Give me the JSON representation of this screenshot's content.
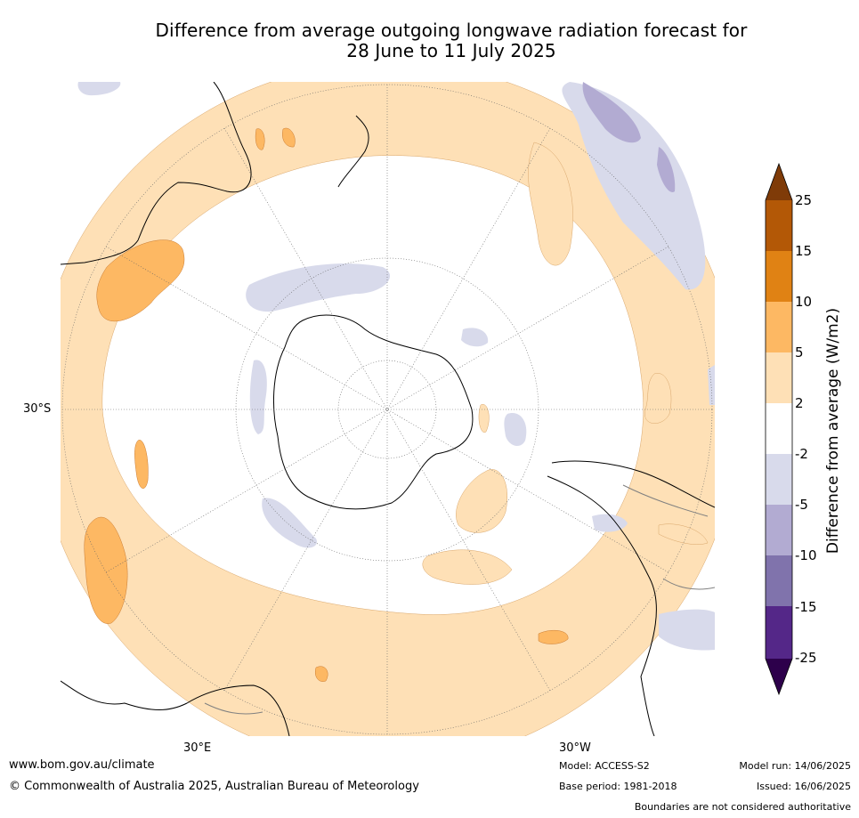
{
  "title_line1": "Difference from average outgoing longwave radiation forecast for",
  "title_line2": "28 June to 11 July 2025",
  "labels": {
    "lat_30s": "30°S",
    "lon_30e": "30°E",
    "lon_30w": "30°W"
  },
  "colorbar": {
    "title": "Difference from average (W/m2)",
    "tick_labels": [
      "25",
      "15",
      "10",
      "5",
      "2",
      "-2",
      "-5",
      "-10",
      "-15",
      "-25"
    ],
    "colors_top_to_bottom": [
      "#7f3b08",
      "#b35806",
      "#e08214",
      "#fdb863",
      "#fee0b6",
      "#ffffff",
      "#d8daeb",
      "#b2abd2",
      "#8073ac",
      "#542788",
      "#2d004b"
    ]
  },
  "footer": {
    "website": "www.bom.gov.au/climate",
    "copyright": "© Commonwealth of Australia 2025, Australian Bureau of Meteorology",
    "model": "Model: ACCESS-S2",
    "base_period": "Base period: 1981-2018",
    "model_run": "Model run: 14/06/2025",
    "issued": "Issued: 16/06/2025",
    "disclaimer": "Boundaries are not considered authoritative"
  }
}
